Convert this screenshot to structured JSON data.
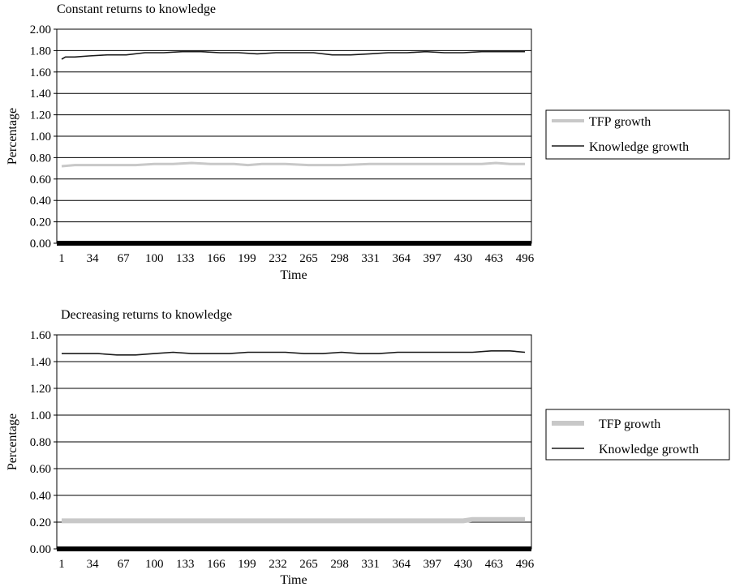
{
  "chart_data": [
    {
      "type": "line",
      "title": "Constant returns to knowledge",
      "xlabel": "Time",
      "ylabel": "Percentage",
      "ylim": [
        0,
        2
      ],
      "yticks": [
        "0.00",
        "0.20",
        "0.40",
        "0.60",
        "0.80",
        "1.00",
        "1.20",
        "1.40",
        "1.60",
        "1.80",
        "2.00"
      ],
      "xlim": [
        1,
        496
      ],
      "xticks": [
        1,
        34,
        67,
        100,
        133,
        166,
        199,
        232,
        265,
        298,
        331,
        364,
        397,
        430,
        463,
        496
      ],
      "grid": "horizontal",
      "legend_position": "right",
      "series": [
        {
          "name": "TFP growth",
          "color": "#c8c8c8",
          "x": [
            1,
            15,
            40,
            80,
            100,
            120,
            140,
            160,
            185,
            200,
            215,
            240,
            265,
            300,
            330,
            345,
            380,
            420,
            450,
            465,
            480,
            496
          ],
          "values": [
            0.72,
            0.73,
            0.73,
            0.73,
            0.74,
            0.74,
            0.75,
            0.74,
            0.74,
            0.73,
            0.74,
            0.74,
            0.73,
            0.73,
            0.74,
            0.74,
            0.74,
            0.74,
            0.74,
            0.75,
            0.74,
            0.74
          ]
        },
        {
          "name": "Knowledge growth",
          "color": "#1a1a1a",
          "x": [
            1,
            5,
            15,
            30,
            50,
            70,
            90,
            110,
            130,
            150,
            170,
            190,
            210,
            230,
            250,
            270,
            290,
            310,
            330,
            350,
            370,
            390,
            410,
            430,
            450,
            470,
            496
          ],
          "values": [
            1.72,
            1.74,
            1.74,
            1.75,
            1.76,
            1.76,
            1.78,
            1.78,
            1.79,
            1.79,
            1.78,
            1.78,
            1.77,
            1.78,
            1.78,
            1.78,
            1.76,
            1.76,
            1.77,
            1.78,
            1.78,
            1.79,
            1.78,
            1.78,
            1.79,
            1.79,
            1.79
          ]
        }
      ]
    },
    {
      "type": "line",
      "title": "Decreasing returns to knowledge",
      "xlabel": "Time",
      "ylabel": "Percentage",
      "ylim": [
        0,
        1.6
      ],
      "yticks": [
        "0.00",
        "0.20",
        "0.40",
        "0.60",
        "0.80",
        "1.00",
        "1.20",
        "1.40",
        "1.60"
      ],
      "xlim": [
        1,
        496
      ],
      "xticks": [
        1,
        34,
        67,
        100,
        133,
        166,
        199,
        232,
        265,
        298,
        331,
        364,
        397,
        430,
        463,
        496
      ],
      "grid": "horizontal",
      "legend_position": "right",
      "series": [
        {
          "name": "TFP growth",
          "color": "#c8c8c8",
          "x": [
            1,
            50,
            100,
            150,
            200,
            250,
            300,
            350,
            400,
            430,
            440,
            460,
            480,
            496
          ],
          "values": [
            0.21,
            0.21,
            0.21,
            0.21,
            0.21,
            0.21,
            0.21,
            0.21,
            0.21,
            0.21,
            0.22,
            0.22,
            0.22,
            0.22
          ]
        },
        {
          "name": "Knowledge growth",
          "color": "#1a1a1a",
          "x": [
            1,
            20,
            40,
            60,
            80,
            100,
            120,
            140,
            160,
            180,
            200,
            220,
            240,
            260,
            280,
            300,
            320,
            340,
            360,
            380,
            400,
            420,
            440,
            460,
            480,
            496
          ],
          "values": [
            1.46,
            1.46,
            1.46,
            1.45,
            1.45,
            1.46,
            1.47,
            1.46,
            1.46,
            1.46,
            1.47,
            1.47,
            1.47,
            1.46,
            1.46,
            1.47,
            1.46,
            1.46,
            1.47,
            1.47,
            1.47,
            1.47,
            1.47,
            1.48,
            1.48,
            1.47
          ]
        }
      ]
    }
  ]
}
